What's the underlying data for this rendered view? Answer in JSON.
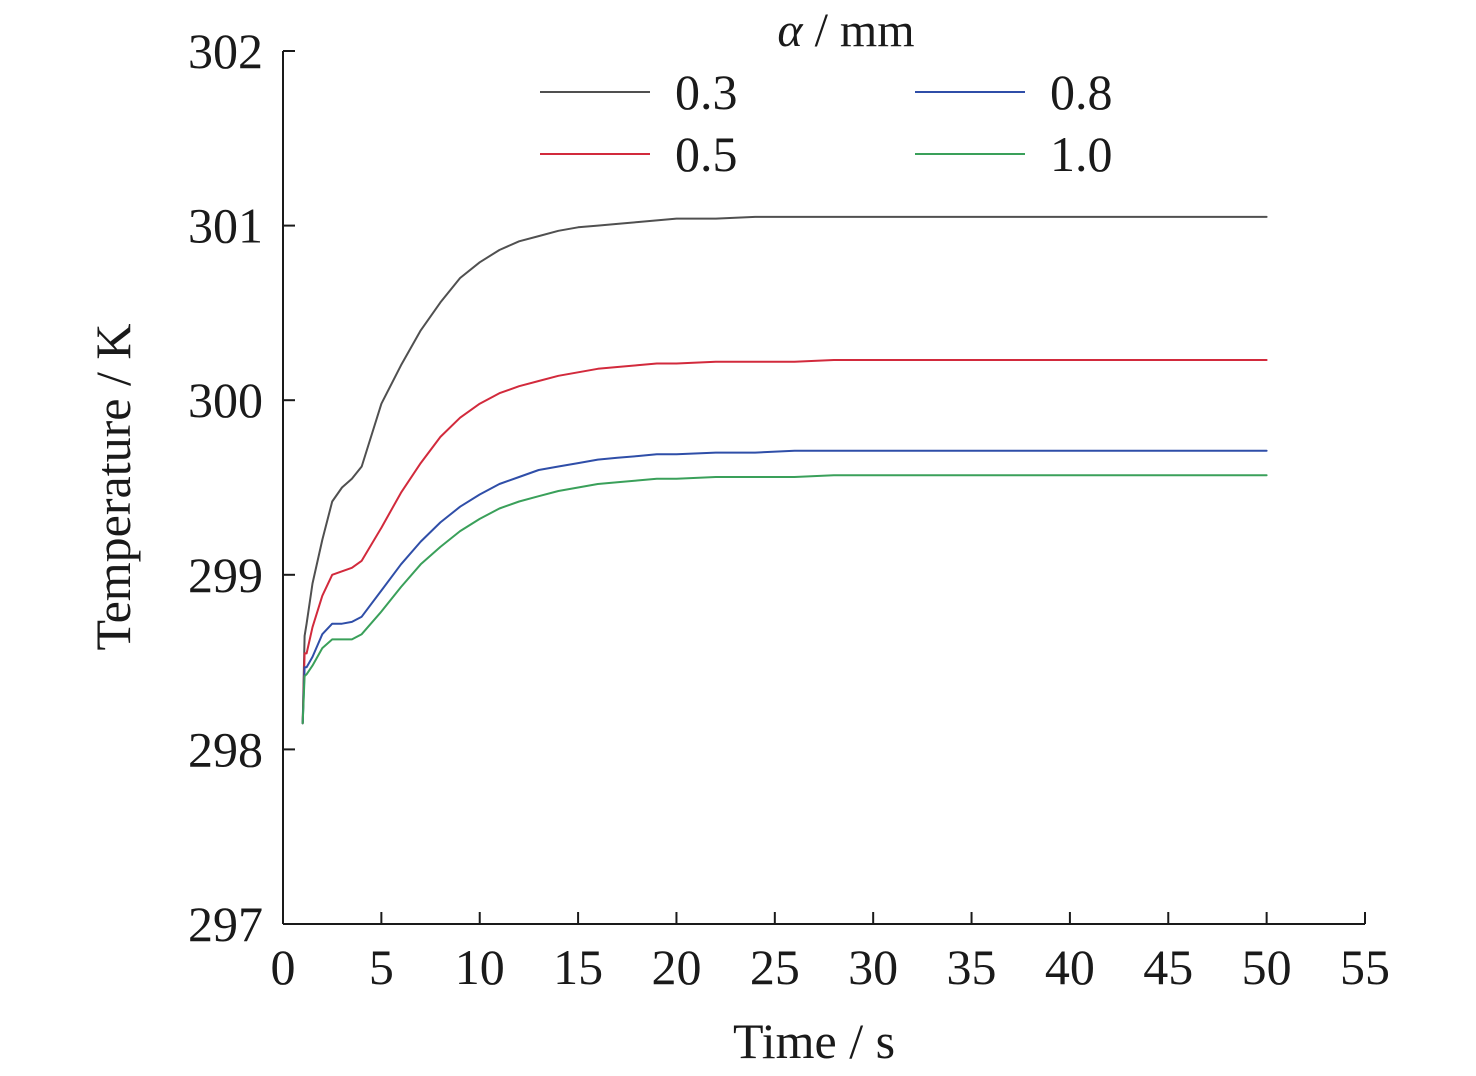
{
  "chart_data": {
    "type": "line",
    "title": "",
    "xlabel": "Time / s",
    "ylabel": "Temperature / K",
    "xlim": [
      0,
      55
    ],
    "ylim": [
      297,
      302
    ],
    "xticks": [
      0,
      5,
      10,
      15,
      20,
      25,
      30,
      35,
      40,
      45,
      50,
      55
    ],
    "xtick_labels": [
      "0",
      "5",
      "10",
      "15",
      "20",
      "25",
      "30",
      "35",
      "40",
      "45",
      "50",
      "55"
    ],
    "yticks": [
      297,
      298,
      299,
      300,
      301,
      302
    ],
    "ytick_labels": [
      "297",
      "298",
      "299",
      "300",
      "301",
      "302"
    ],
    "grid": false,
    "legend": {
      "title_symbol": "α",
      "title_rest": " / mm",
      "placement": "top-center",
      "columns": 2
    },
    "x": [
      1.0,
      1.1,
      1.2,
      1.5,
      2.0,
      2.5,
      3.0,
      3.5,
      4.0,
      5.0,
      6.0,
      7.0,
      8.0,
      9.0,
      10.0,
      11.0,
      12.0,
      13.0,
      14.0,
      15.0,
      16.0,
      17.0,
      18.0,
      19.0,
      20.0,
      22.0,
      24.0,
      26.0,
      28.0,
      30.0,
      33.0,
      36.0,
      40.0,
      45.0,
      50.0
    ],
    "series": [
      {
        "name": "0.3",
        "color": "#505050",
        "values": [
          298.15,
          298.65,
          298.72,
          298.95,
          299.2,
          299.42,
          299.5,
          299.55,
          299.62,
          299.98,
          300.2,
          300.4,
          300.56,
          300.7,
          300.79,
          300.86,
          300.91,
          300.94,
          300.97,
          300.99,
          301.0,
          301.01,
          301.02,
          301.03,
          301.04,
          301.04,
          301.05,
          301.05,
          301.05,
          301.05,
          301.05,
          301.05,
          301.05,
          301.05,
          301.05
        ]
      },
      {
        "name": "0.5",
        "color": "#d22a3c",
        "values": [
          298.15,
          298.55,
          298.55,
          298.7,
          298.88,
          299.0,
          299.02,
          299.04,
          299.08,
          299.27,
          299.47,
          299.64,
          299.79,
          299.9,
          299.98,
          300.04,
          300.08,
          300.11,
          300.14,
          300.16,
          300.18,
          300.19,
          300.2,
          300.21,
          300.21,
          300.22,
          300.22,
          300.22,
          300.23,
          300.23,
          300.23,
          300.23,
          300.23,
          300.23,
          300.23
        ]
      },
      {
        "name": "0.8",
        "color": "#2f4ea8",
        "values": [
          298.15,
          298.47,
          298.47,
          298.53,
          298.66,
          298.72,
          298.72,
          298.73,
          298.76,
          298.91,
          299.06,
          299.19,
          299.3,
          299.39,
          299.46,
          299.52,
          299.56,
          299.6,
          299.62,
          299.64,
          299.66,
          299.67,
          299.68,
          299.69,
          299.69,
          299.7,
          299.7,
          299.71,
          299.71,
          299.71,
          299.71,
          299.71,
          299.71,
          299.71,
          299.71
        ]
      },
      {
        "name": "1.0",
        "color": "#3aa05a",
        "values": [
          298.15,
          298.42,
          298.43,
          298.48,
          298.58,
          298.63,
          298.63,
          298.63,
          298.66,
          298.79,
          298.93,
          299.06,
          299.16,
          299.25,
          299.32,
          299.38,
          299.42,
          299.45,
          299.48,
          299.5,
          299.52,
          299.53,
          299.54,
          299.55,
          299.55,
          299.56,
          299.56,
          299.56,
          299.57,
          299.57,
          299.57,
          299.57,
          299.57,
          299.57,
          299.57
        ]
      }
    ]
  }
}
